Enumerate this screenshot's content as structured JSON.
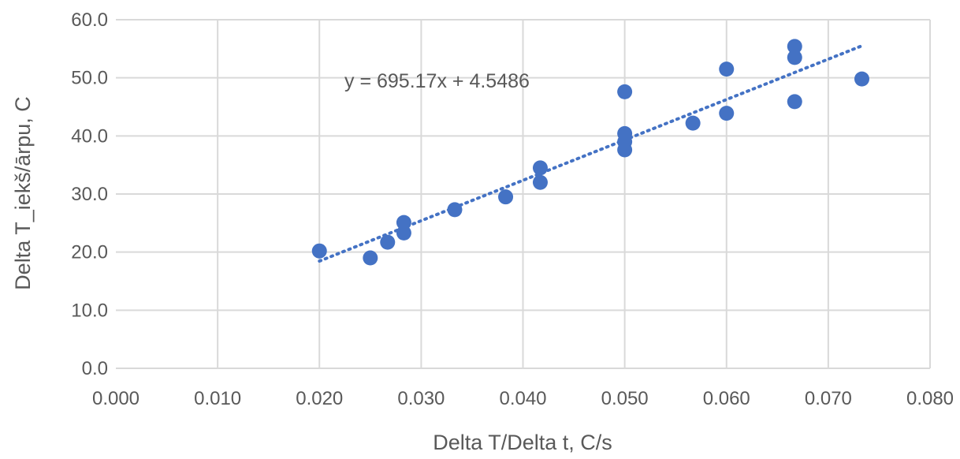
{
  "chart_data": {
    "type": "scatter",
    "title": "",
    "xlabel": "Delta T/Delta t, C/s",
    "ylabel": "Delta T_iekš/ārpu, C",
    "xlim": [
      0.0,
      0.08
    ],
    "ylim": [
      0.0,
      60.0
    ],
    "x_ticks": [
      "0.000",
      "0.010",
      "0.020",
      "0.030",
      "0.040",
      "0.050",
      "0.060",
      "0.070",
      "0.080"
    ],
    "y_ticks": [
      "0.0",
      "10.0",
      "20.0",
      "30.0",
      "40.0",
      "50.0",
      "60.0"
    ],
    "grid": true,
    "legend": "none",
    "series": [
      {
        "marker_color": "#4472C4",
        "points": [
          [
            0.02,
            20.2
          ],
          [
            0.025,
            19.0
          ],
          [
            0.0267,
            21.7
          ],
          [
            0.0283,
            23.3
          ],
          [
            0.0283,
            25.1
          ],
          [
            0.0333,
            27.3
          ],
          [
            0.0383,
            29.5
          ],
          [
            0.0417,
            32.0
          ],
          [
            0.0417,
            34.5
          ],
          [
            0.05,
            37.6
          ],
          [
            0.05,
            39.0
          ],
          [
            0.05,
            40.4
          ],
          [
            0.05,
            47.6
          ],
          [
            0.0567,
            42.2
          ],
          [
            0.06,
            43.9
          ],
          [
            0.06,
            51.5
          ],
          [
            0.0667,
            45.9
          ],
          [
            0.0667,
            53.5
          ],
          [
            0.0667,
            55.4
          ],
          [
            0.0733,
            49.8
          ]
        ]
      }
    ],
    "trendline": {
      "type": "linear",
      "style": "dotted",
      "color": "#4472C4",
      "slope": 695.17,
      "intercept": 4.5486,
      "x_range": [
        0.02,
        0.0733
      ],
      "equation_label": "y = 695.17x + 4.5486"
    }
  }
}
